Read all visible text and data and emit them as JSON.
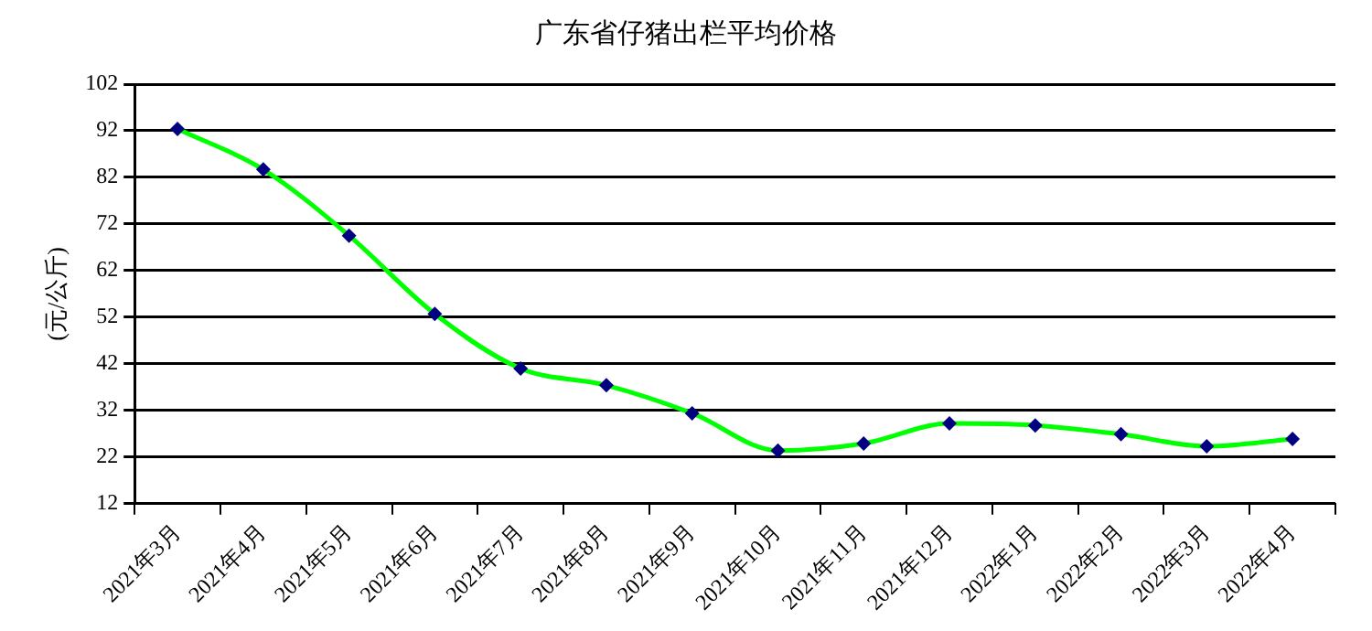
{
  "chart_data": {
    "type": "line",
    "title": "广东省仔猪出栏平均价格",
    "ylabel": "(元/公斤)",
    "categories": [
      "2021年3月",
      "2021年4月",
      "2021年5月",
      "2021年6月",
      "2021年7月",
      "2021年8月",
      "2021年9月",
      "2021年10月",
      "2021年11月",
      "2021年12月",
      "2022年1月",
      "2022年2月",
      "2022年3月",
      "2022年4月"
    ],
    "series": [
      {
        "color": "#00ff00",
        "values": [
          92.4,
          83.7,
          69.5,
          52.7,
          41.0,
          37.4,
          31.4,
          23.4,
          24.9,
          29.2,
          28.8,
          26.9,
          24.3,
          25.9
        ]
      }
    ],
    "ylim": [
      12,
      102
    ],
    "yticks": [
      12,
      22,
      32,
      42,
      52,
      62,
      72,
      82,
      92,
      102
    ],
    "grid": "y",
    "legend": false,
    "marker": "diamond",
    "line_style": "solid"
  }
}
